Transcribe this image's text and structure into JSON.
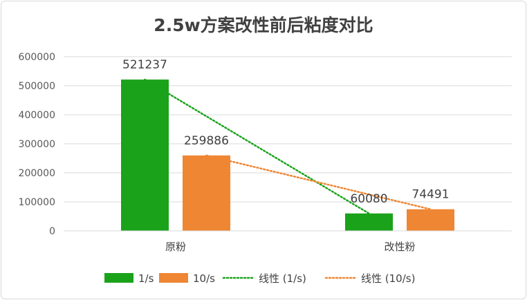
{
  "chart_data": {
    "type": "bar",
    "title": "2.5w方案改性前后粘度对比",
    "categories": [
      "原粉",
      "改性粉"
    ],
    "series": [
      {
        "name": "1/s",
        "values": [
          521237,
          60080
        ],
        "color": "#1aa31a"
      },
      {
        "name": "10/s",
        "values": [
          259886,
          74491
        ],
        "color": "#ef8633"
      }
    ],
    "trendlines": [
      {
        "name": "线性 (1/s)",
        "series": "1/s",
        "type": "linear",
        "color": "#1aa31a"
      },
      {
        "name": "线性 (10/s)",
        "series": "10/s",
        "type": "linear",
        "color": "#ef8633"
      }
    ],
    "yticks": [
      "0",
      "100000",
      "200000",
      "300000",
      "400000",
      "500000",
      "600000"
    ],
    "ylim": [
      0,
      600000
    ],
    "grid": true,
    "legend_position": "bottom"
  }
}
